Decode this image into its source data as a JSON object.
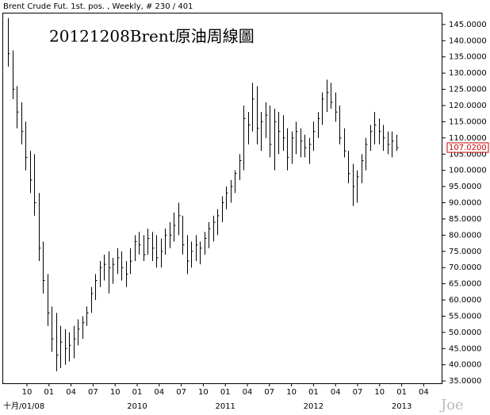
{
  "chart_data": {
    "type": "ohlc",
    "title": "Brent Crude Fut. 1st. pos. , Weekly, # 230 / 401",
    "annotation": "20121208Brent原油周線圖",
    "watermark": "Joe",
    "start_label": "十月/01/08",
    "color": "#000000",
    "ylim": [
      34.3,
      148.4
    ],
    "yticks": [
      {
        "value": 35,
        "label": "35.0000"
      },
      {
        "value": 40,
        "label": "40.0000"
      },
      {
        "value": 45,
        "label": "45.0000"
      },
      {
        "value": 50,
        "label": "50.0000"
      },
      {
        "value": 55,
        "label": "55.0000"
      },
      {
        "value": 60,
        "label": "60.0000"
      },
      {
        "value": 65,
        "label": "65.0000"
      },
      {
        "value": 70,
        "label": "70.0000"
      },
      {
        "value": 75,
        "label": "75.0000"
      },
      {
        "value": 80,
        "label": "80.0000"
      },
      {
        "value": 85,
        "label": "85.0000"
      },
      {
        "value": 90,
        "label": "90.0000"
      },
      {
        "value": 95,
        "label": "95.0000"
      },
      {
        "value": 100,
        "label": "100.0000"
      },
      {
        "value": 105,
        "label": "105.0000"
      },
      {
        "value": 110,
        "label": "110.0000"
      },
      {
        "value": 115,
        "label": "115.0000"
      },
      {
        "value": 120,
        "label": "120.0000"
      },
      {
        "value": 125,
        "label": "125.0000"
      },
      {
        "value": 130,
        "label": "130.0000"
      },
      {
        "value": 135,
        "label": "135.0000"
      },
      {
        "value": 140,
        "label": "140.0000"
      },
      {
        "value": 145,
        "label": "145.0000"
      }
    ],
    "last_price": {
      "value": 107.02,
      "label": "107.0200",
      "color": "#cc0000"
    },
    "xticks": [
      "10",
      "01",
      "04",
      "07",
      "10",
      "01",
      "04",
      "07",
      "10",
      "01",
      "04",
      "07",
      "10",
      "01",
      "04",
      "07",
      "10",
      "01",
      "04"
    ],
    "years": [
      "2010",
      "2011",
      "2012",
      "2013"
    ],
    "high": [
      147,
      137,
      126,
      121,
      115,
      106,
      105,
      93,
      78,
      68,
      58,
      56,
      52,
      51,
      50,
      52,
      54,
      55,
      58,
      64,
      68,
      72,
      74,
      75,
      73,
      76,
      75,
      72,
      76,
      80,
      81,
      80,
      82,
      81,
      80,
      79,
      82,
      84,
      87,
      90,
      86,
      80,
      78,
      80,
      78,
      81,
      84,
      86,
      88,
      92,
      95,
      97,
      100,
      105,
      120,
      118,
      127,
      126,
      118,
      121,
      120,
      119,
      118,
      117,
      113,
      112,
      115,
      113,
      111,
      110,
      115,
      118,
      124,
      128,
      127,
      124,
      120,
      113,
      106,
      102,
      100,
      105,
      110,
      114,
      118,
      116,
      114,
      112,
      112,
      111
    ],
    "low": [
      132,
      122,
      113,
      108,
      100,
      93,
      86,
      72,
      62,
      52,
      44,
      38,
      39,
      40,
      41,
      42,
      46,
      48,
      52,
      56,
      60,
      64,
      66,
      62,
      65,
      68,
      66,
      64,
      68,
      72,
      74,
      72,
      74,
      72,
      70,
      70,
      74,
      76,
      78,
      80,
      74,
      68,
      70,
      72,
      71,
      74,
      76,
      78,
      80,
      84,
      88,
      90,
      93,
      97,
      100,
      108,
      112,
      108,
      106,
      110,
      104,
      100,
      105,
      106,
      100,
      102,
      105,
      104,
      104,
      102,
      106,
      110,
      114,
      118,
      119,
      115,
      108,
      104,
      96,
      89,
      90,
      96,
      100,
      106,
      108,
      108,
      106,
      105,
      104,
      106
    ],
    "close": [
      136,
      125,
      118,
      112,
      104,
      97,
      90,
      76,
      66,
      56,
      48,
      43,
      47,
      45,
      46,
      48,
      51,
      53,
      56,
      62,
      66,
      70,
      71,
      70,
      71,
      73,
      70,
      68,
      72,
      78,
      77,
      74,
      79,
      76,
      73,
      75,
      80,
      80,
      83,
      86,
      77,
      72,
      75,
      77,
      76,
      79,
      82,
      84,
      86,
      90,
      93,
      95,
      99,
      103,
      116,
      114,
      122,
      113,
      115,
      117,
      108,
      115,
      112,
      110,
      104,
      110,
      112,
      109,
      107,
      108,
      112,
      116,
      122,
      124,
      121,
      118,
      110,
      106,
      99,
      95,
      98,
      103,
      108,
      112,
      114,
      112,
      110,
      108,
      109,
      107
    ]
  }
}
